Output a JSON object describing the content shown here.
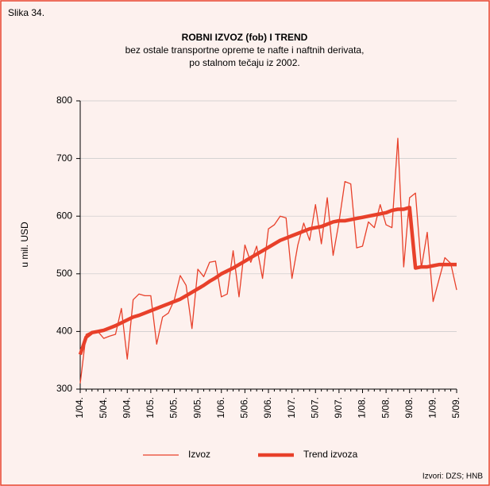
{
  "chart_data": {
    "type": "line",
    "label": "Slika 34.",
    "title": "ROBNI IZVOZ (fob) I TREND",
    "subtitle": [
      "bez ostale transportne opreme te nafte i naftnih derivata,",
      "po stalnom tečaju iz 2002."
    ],
    "ylabel": "u mil. USD",
    "source": "Izvori: DZS; HNB",
    "categories": [
      "1/04.",
      null,
      null,
      null,
      "5/04.",
      null,
      null,
      null,
      "9/04.",
      null,
      null,
      null,
      "1/05.",
      null,
      null,
      null,
      "5/05.",
      null,
      null,
      null,
      "9/05.",
      null,
      null,
      null,
      "1/06.",
      null,
      null,
      null,
      "5/06.",
      null,
      null,
      null,
      "9/06.",
      null,
      null,
      null,
      "1/07.",
      null,
      null,
      null,
      "5/07.",
      null,
      null,
      null,
      "9/07.",
      null,
      null,
      null,
      "1/08.",
      null,
      null,
      null,
      "5/08.",
      null,
      null,
      null,
      "9/08.",
      null,
      null,
      null,
      "1/09.",
      null,
      null,
      null,
      "5/09."
    ],
    "series": [
      {
        "name": "Izvoz",
        "color": "#e8402a",
        "values": [
          310,
          395,
          400,
          400,
          388,
          392,
          395,
          440,
          352,
          455,
          465,
          462,
          462,
          378,
          425,
          432,
          455,
          497,
          480,
          405,
          508,
          495,
          520,
          522,
          460,
          465,
          540,
          460,
          550,
          520,
          548,
          492,
          578,
          585,
          600,
          597,
          492,
          550,
          588,
          558,
          620,
          552,
          632,
          532,
          590,
          660,
          656,
          545,
          548,
          590,
          580,
          620,
          585,
          580,
          735,
          512,
          632,
          640,
          510,
          572,
          452,
          490,
          528,
          518,
          472
        ]
      },
      {
        "name": "Trend izvoza",
        "color": "#e8402a",
        "values": [
          360,
          390,
          398,
          400,
          402,
          406,
          410,
          415,
          420,
          425,
          428,
          432,
          436,
          440,
          444,
          448,
          452,
          456,
          462,
          468,
          474,
          480,
          487,
          493,
          500,
          505,
          510,
          516,
          522,
          528,
          534,
          540,
          546,
          552,
          558,
          562,
          566,
          570,
          574,
          578,
          580,
          582,
          586,
          590,
          592,
          592,
          594,
          596,
          598,
          600,
          602,
          604,
          606,
          610,
          612,
          612,
          615,
          510,
          512,
          512,
          514,
          516,
          516,
          516,
          516
        ]
      }
    ],
    "ylim": [
      300,
      800
    ],
    "yticks": [
      300,
      400,
      500,
      600,
      700,
      800
    ],
    "grid": true
  }
}
